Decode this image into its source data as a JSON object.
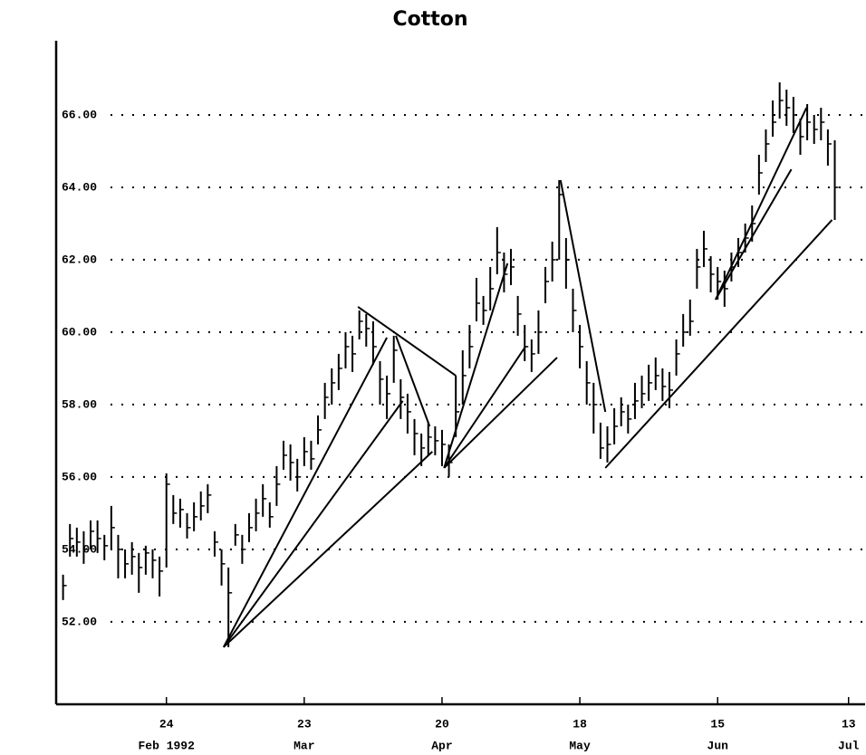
{
  "chart_data": {
    "type": "ohlc",
    "title": "Cotton",
    "x": [
      -15,
      -14,
      -13,
      -12,
      -11,
      -10,
      -9,
      -8,
      -7,
      -6,
      -5,
      -4,
      -3,
      -2,
      -1,
      0,
      1,
      2,
      3,
      4,
      5,
      6,
      7,
      8,
      9,
      10,
      11,
      12,
      13,
      14,
      15,
      16,
      17,
      18,
      19,
      20,
      21,
      22,
      23,
      24,
      25,
      26,
      27,
      28,
      29,
      30,
      31,
      32,
      33,
      34,
      35,
      36,
      37,
      38,
      39,
      40,
      41,
      42,
      43,
      44,
      45,
      46,
      47,
      48,
      49,
      50,
      51,
      52,
      53,
      54,
      55,
      56,
      57,
      58,
      59,
      60,
      61,
      62,
      63,
      64,
      65,
      66,
      67,
      68,
      69,
      70,
      71,
      72,
      73,
      74,
      75,
      76,
      77,
      78,
      79,
      80,
      81,
      82,
      83,
      84,
      85,
      86,
      87,
      88,
      89,
      90,
      91,
      92,
      93,
      94,
      95,
      96,
      97
    ],
    "high": [
      53.3,
      54.7,
      54.6,
      54.5,
      54.8,
      54.8,
      54.4,
      55.2,
      54.4,
      54.0,
      54.2,
      53.9,
      54.1,
      54.0,
      53.8,
      56.1,
      55.5,
      55.4,
      55.0,
      55.3,
      55.6,
      55.8,
      54.5,
      54.0,
      53.5,
      54.7,
      54.4,
      55.0,
      55.4,
      55.8,
      55.3,
      56.3,
      57.0,
      56.9,
      56.5,
      57.1,
      57.0,
      57.7,
      58.6,
      59.0,
      59.4,
      60.0,
      59.9,
      60.6,
      60.5,
      60.3,
      59.2,
      58.8,
      59.9,
      58.7,
      58.3,
      57.6,
      57.2,
      57.5,
      57.4,
      57.3,
      56.9,
      58.8,
      59.5,
      60.2,
      61.5,
      61.0,
      61.8,
      62.9,
      62.2,
      62.3,
      61.0,
      60.2,
      59.8,
      60.6,
      61.8,
      62.5,
      64.2,
      62.6,
      61.2,
      60.2,
      59.2,
      58.6,
      57.5,
      57.4,
      57.9,
      58.2,
      58.0,
      58.6,
      58.8,
      59.1,
      59.3,
      59.0,
      58.9,
      59.8,
      60.5,
      60.9,
      62.3,
      62.8,
      62.1,
      61.8,
      61.7,
      62.2,
      62.6,
      63.0,
      63.5,
      64.9,
      65.6,
      66.4,
      66.9,
      66.7,
      66.5,
      65.9,
      66.3,
      66.0,
      66.2,
      65.6,
      65.3
    ],
    "low": [
      52.6,
      53.8,
      53.8,
      53.6,
      54.0,
      53.9,
      53.7,
      54.0,
      53.2,
      53.2,
      53.3,
      52.8,
      53.3,
      53.2,
      52.7,
      53.5,
      54.7,
      54.6,
      54.3,
      54.5,
      54.8,
      55.0,
      53.8,
      53.0,
      51.3,
      54.1,
      53.6,
      54.2,
      54.5,
      54.9,
      54.6,
      55.2,
      56.2,
      55.9,
      55.6,
      56.3,
      56.2,
      56.9,
      57.6,
      58.0,
      58.4,
      59.0,
      58.9,
      59.8,
      59.6,
      59.1,
      58.0,
      57.6,
      58.6,
      57.6,
      57.2,
      56.6,
      56.3,
      56.6,
      56.6,
      56.3,
      56.0,
      57.1,
      58.0,
      59.0,
      60.3,
      60.2,
      60.6,
      61.6,
      61.1,
      61.3,
      59.9,
      59.2,
      58.9,
      59.4,
      60.8,
      61.4,
      62.0,
      61.2,
      60.0,
      59.0,
      58.0,
      57.2,
      56.5,
      56.4,
      56.9,
      57.4,
      57.2,
      57.6,
      57.9,
      58.1,
      58.4,
      58.1,
      57.9,
      58.8,
      59.6,
      59.9,
      61.2,
      61.8,
      61.1,
      60.9,
      60.7,
      61.4,
      61.8,
      62.2,
      62.5,
      63.8,
      64.7,
      65.4,
      65.9,
      65.7,
      65.5,
      64.9,
      65.3,
      65.2,
      65.3,
      64.6,
      63.1
    ],
    "close": [
      53.0,
      54.3,
      54.2,
      54.0,
      54.5,
      54.3,
      54.1,
      54.6,
      54.0,
      53.6,
      53.8,
      53.5,
      53.9,
      53.7,
      53.4,
      55.8,
      55.0,
      55.1,
      54.6,
      54.9,
      55.2,
      55.5,
      54.2,
      53.6,
      52.8,
      54.4,
      54.0,
      54.6,
      55.0,
      55.4,
      54.9,
      55.8,
      56.6,
      56.4,
      56.0,
      56.7,
      56.5,
      57.3,
      58.2,
      58.6,
      59.0,
      59.6,
      59.4,
      60.3,
      60.1,
      59.6,
      58.7,
      58.3,
      59.5,
      58.2,
      57.8,
      57.2,
      56.8,
      57.1,
      57.0,
      56.9,
      56.4,
      57.8,
      58.8,
      59.6,
      60.8,
      60.6,
      61.2,
      62.2,
      61.6,
      61.8,
      60.5,
      59.6,
      59.4,
      60.0,
      61.4,
      62.0,
      63.8,
      62.0,
      60.6,
      59.6,
      58.6,
      58.0,
      56.8,
      56.9,
      57.4,
      57.8,
      57.6,
      58.1,
      58.3,
      58.6,
      58.8,
      58.5,
      58.4,
      59.4,
      60.0,
      60.3,
      61.8,
      62.3,
      61.6,
      61.4,
      61.2,
      61.8,
      62.2,
      62.6,
      63.0,
      64.4,
      65.2,
      65.8,
      66.4,
      66.2,
      66.0,
      65.4,
      65.8,
      65.6,
      65.8,
      65.2,
      64.0
    ],
    "trend_lines": [
      [
        8.3,
        51.3,
        32.0,
        59.85
      ],
      [
        8.3,
        51.3,
        34.3,
        58.1
      ],
      [
        8.3,
        51.3,
        38.6,
        56.7
      ],
      [
        27.8,
        60.7,
        42.0,
        58.8
      ],
      [
        33.3,
        59.9,
        38.2,
        57.4
      ],
      [
        40.3,
        56.25,
        49.5,
        61.9
      ],
      [
        40.3,
        56.25,
        52.1,
        59.6
      ],
      [
        40.3,
        56.25,
        56.7,
        59.3
      ],
      [
        57.2,
        64.2,
        63.7,
        57.8
      ],
      [
        63.7,
        56.25,
        96.6,
        63.1
      ],
      [
        79.7,
        60.9,
        92.9,
        66.2
      ],
      [
        79.7,
        60.9,
        90.7,
        64.5
      ]
    ],
    "xlim": [
      -16,
      101.4
    ],
    "xticks": [
      {
        "value": 0,
        "label": "24"
      },
      {
        "value": 20,
        "label": "23"
      },
      {
        "value": 40,
        "label": "20"
      },
      {
        "value": 60,
        "label": "18"
      },
      {
        "value": 80,
        "label": "15"
      },
      {
        "value": 99,
        "label": "13"
      }
    ],
    "xtick_sublabels": [
      "Feb 1992",
      "Mar",
      "Apr",
      "May",
      "Jun",
      "Jul"
    ],
    "ylim": [
      49.72,
      68.05
    ],
    "yticks": [
      {
        "value": 52,
        "label": "52.00"
      },
      {
        "value": 54,
        "label": "54.00"
      },
      {
        "value": 56,
        "label": "56.00"
      },
      {
        "value": 58,
        "label": "58.00"
      },
      {
        "value": 60,
        "label": "60.00"
      },
      {
        "value": 62,
        "label": "62.00"
      },
      {
        "value": 64,
        "label": "64.00"
      },
      {
        "value": 66,
        "label": "66.00"
      }
    ],
    "grid": true,
    "color": "#000000"
  }
}
